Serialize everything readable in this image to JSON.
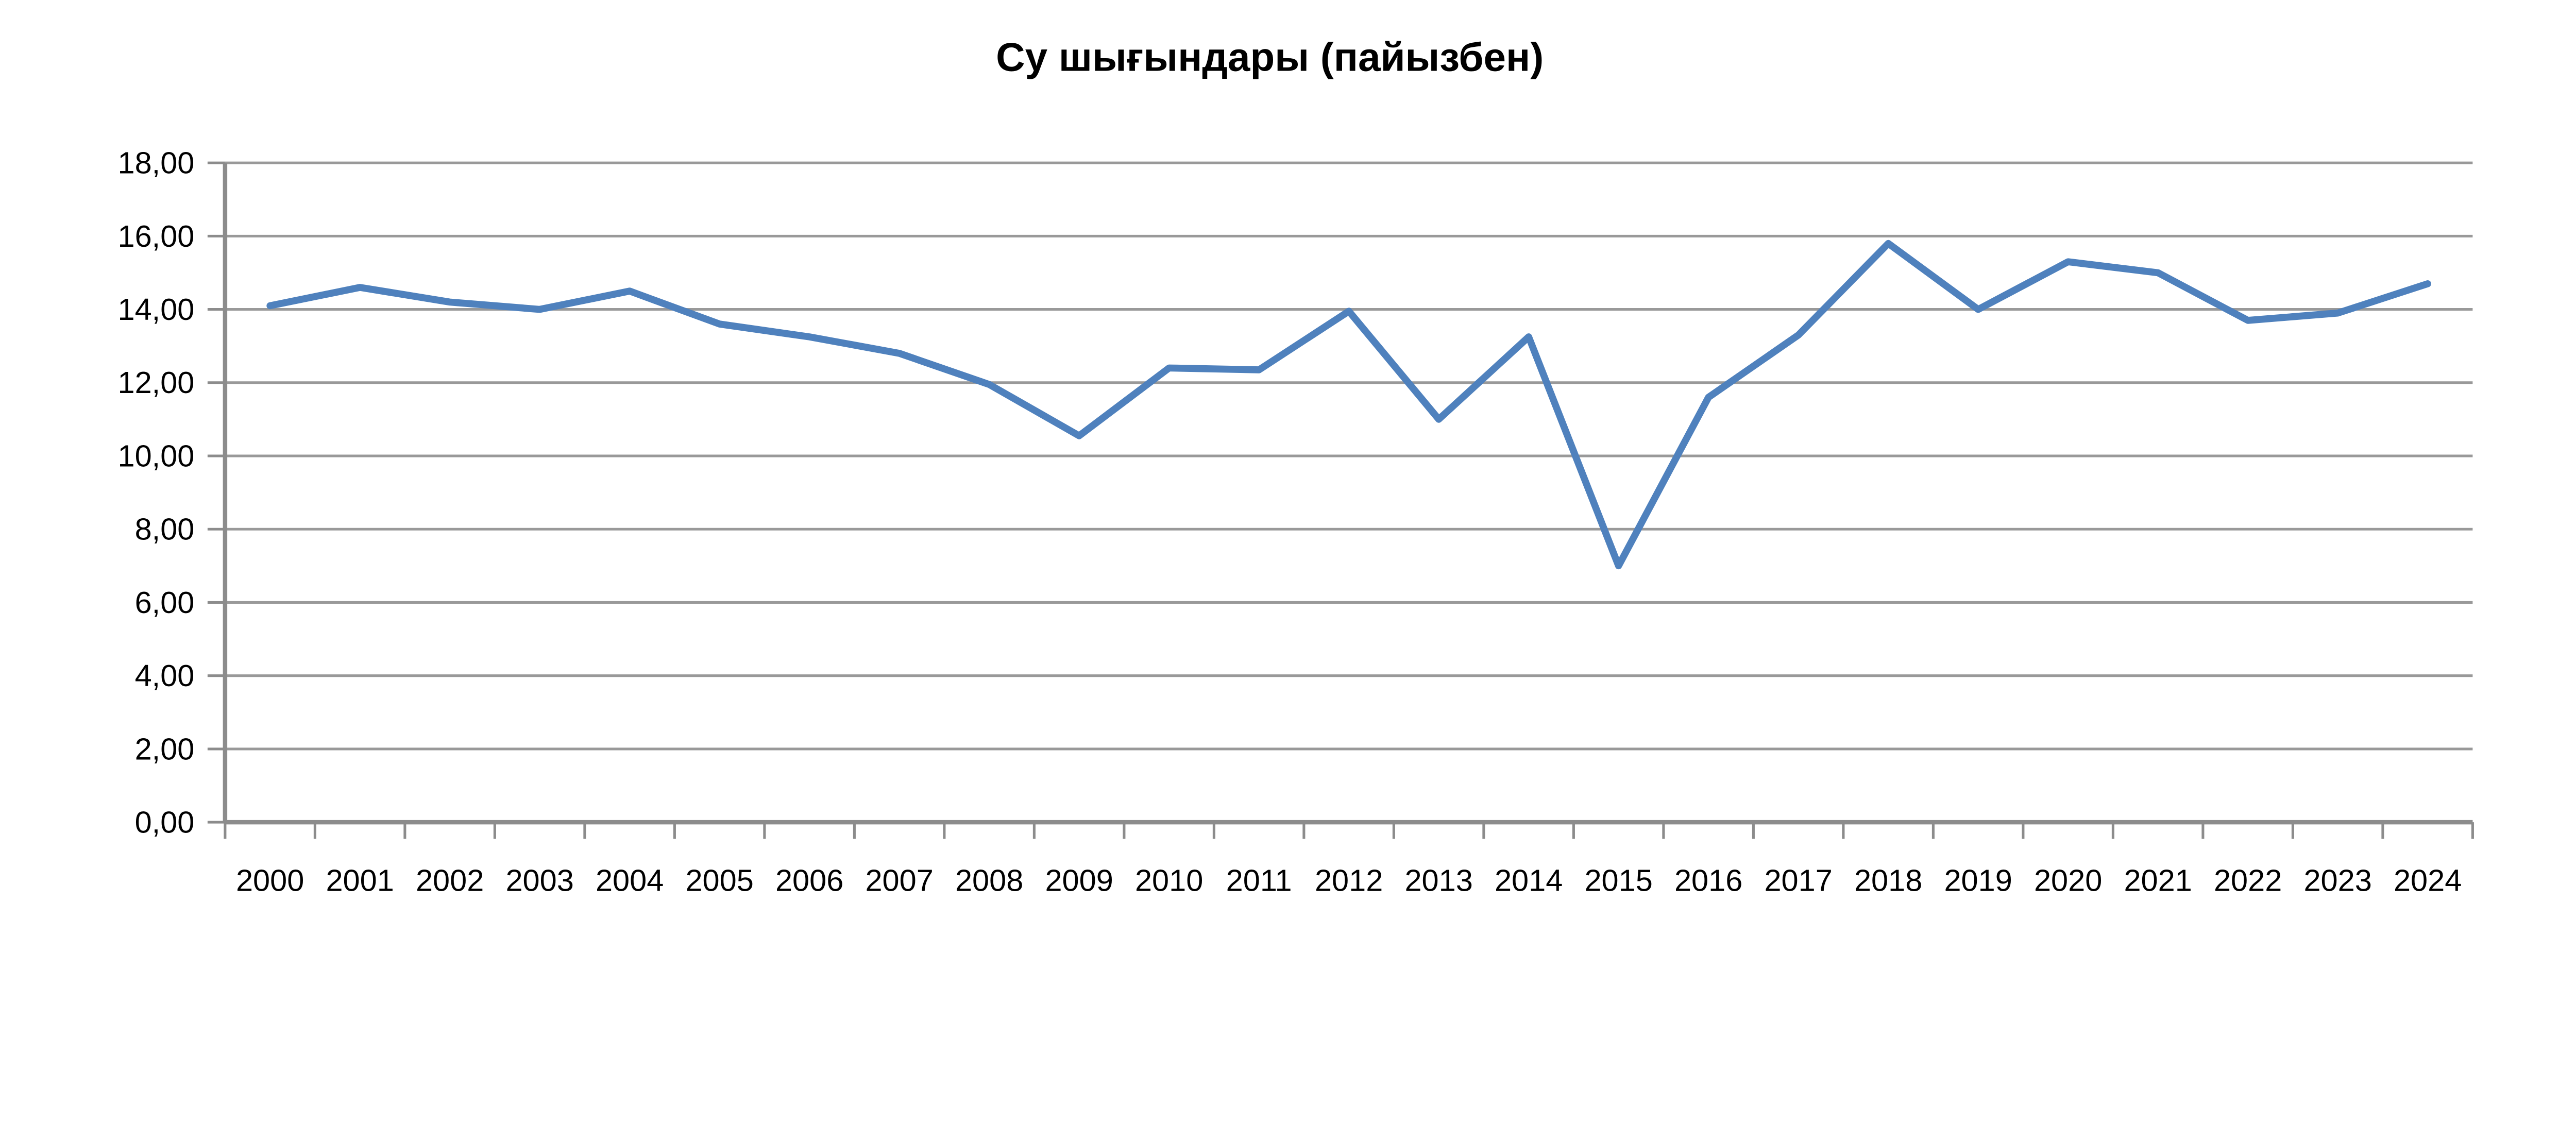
{
  "title": "Су шығындары (пайызбен)",
  "chart_data": {
    "type": "line",
    "title": "Су шығындары (пайызбен)",
    "categories": [
      "2000",
      "2001",
      "2002",
      "2003",
      "2004",
      "2005",
      "2006",
      "2007",
      "2008",
      "2009",
      "2010",
      "2011",
      "2012",
      "2013",
      "2014",
      "2015",
      "2016",
      "2017",
      "2018",
      "2019",
      "2020",
      "2021",
      "2022",
      "2023",
      "2024"
    ],
    "series": [
      {
        "name": "Су шығындары",
        "values": [
          14.1,
          14.6,
          14.2,
          14.0,
          14.5,
          13.6,
          13.25,
          12.8,
          11.95,
          10.55,
          12.4,
          12.35,
          13.95,
          11.0,
          13.25,
          7.0,
          11.6,
          13.3,
          15.8,
          14.0,
          15.3,
          15.0,
          13.7,
          13.9,
          14.7
        ]
      }
    ],
    "xlabel": "",
    "ylabel": "",
    "ylim": [
      0,
      18
    ],
    "ytick_step": 2,
    "ytick_labels": [
      "0,00",
      "2,00",
      "4,00",
      "6,00",
      "8,00",
      "10,00",
      "12,00",
      "14,00",
      "16,00",
      "18,00"
    ],
    "grid": true,
    "legend_position": "none",
    "colors": {
      "series": "#4F81BD",
      "gridline": "#999999",
      "axis": "#8C8C8C",
      "text": "#000000",
      "background": "#FFFFFF"
    }
  }
}
